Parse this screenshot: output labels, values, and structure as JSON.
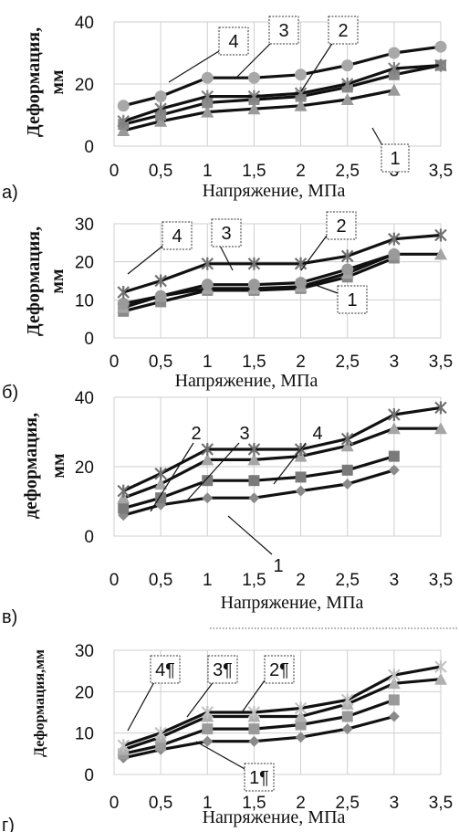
{
  "chart_data": [
    {
      "type": "line",
      "panel_label": "а)",
      "xlabel": "Напряжение, МПа",
      "ylabel": "Деформация, мм",
      "ylabel_lines": [
        "Деформация,",
        "мм"
      ],
      "x": [
        0.1,
        0.5,
        1,
        1.5,
        2,
        2.5,
        3,
        3.5
      ],
      "x_ticks": [
        "0",
        "0,5",
        "1",
        "1,5",
        "2",
        "2,5",
        "3",
        "3,5"
      ],
      "y_ticks": [
        "0",
        "20",
        "40"
      ],
      "xlim": [
        0,
        3.5
      ],
      "ylim": [
        0,
        40
      ],
      "grid": true,
      "series": [
        {
          "name": "1",
          "marker": "triangle",
          "values": [
            5,
            8,
            11,
            12,
            13,
            15,
            18,
            null
          ]
        },
        {
          "name": "2",
          "marker": "square",
          "values": [
            7,
            10,
            14,
            15,
            16,
            19,
            23,
            26
          ]
        },
        {
          "name": "3",
          "marker": "star",
          "values": [
            8,
            12,
            16,
            16,
            17,
            20,
            25,
            26
          ]
        },
        {
          "name": "4",
          "marker": "circle",
          "values": [
            13,
            16,
            22,
            22,
            23,
            26,
            30,
            32
          ]
        }
      ]
    },
    {
      "type": "line",
      "panel_label": "б)",
      "xlabel": "Напряжение, МПа",
      "ylabel": "Деформация, мм",
      "ylabel_lines": [
        "Деформация,",
        "мм"
      ],
      "x": [
        0.1,
        0.5,
        1,
        1.5,
        2,
        2.5,
        3,
        3.5
      ],
      "x_ticks": [
        "0",
        "0,5",
        "1",
        "1,5",
        "2",
        "2,5",
        "3",
        "3,5"
      ],
      "y_ticks": [
        "0",
        "10",
        "20",
        "30"
      ],
      "xlim": [
        0,
        3.5
      ],
      "ylim": [
        0,
        30
      ],
      "grid": true,
      "series": [
        {
          "name": "1",
          "marker": "square",
          "values": [
            7,
            9.5,
            12.5,
            12.5,
            13,
            16,
            21,
            null
          ]
        },
        {
          "name": "2",
          "marker": "triangle",
          "values": [
            8,
            11,
            13,
            13,
            13.5,
            17,
            22,
            22
          ]
        },
        {
          "name": "3",
          "marker": "circle",
          "values": [
            9,
            11,
            14,
            14,
            14.5,
            18,
            22,
            null
          ]
        },
        {
          "name": "4",
          "marker": "star",
          "values": [
            12,
            15,
            19.5,
            19.5,
            19.5,
            21.5,
            26,
            27
          ]
        }
      ]
    },
    {
      "type": "line",
      "panel_label": "в)",
      "xlabel": "Напряжение, МПа",
      "ylabel": "деформация, мм",
      "ylabel_lines": [
        "деформация,",
        "мм"
      ],
      "x": [
        0.1,
        0.5,
        1,
        1.5,
        2,
        2.5,
        3,
        3.5
      ],
      "x_ticks": [
        "0",
        "0,5",
        "1",
        "1,5",
        "2",
        "2,5",
        "3",
        "3,5"
      ],
      "y_ticks": [
        "0",
        "20",
        "40"
      ],
      "xlim": [
        0,
        3.5
      ],
      "ylim": [
        0,
        40
      ],
      "grid": true,
      "series": [
        {
          "name": "1",
          "marker": "diamond",
          "values": [
            6,
            9,
            11,
            11,
            13,
            15,
            19,
            null
          ]
        },
        {
          "name": "2",
          "marker": "square",
          "values": [
            8,
            11,
            16,
            16,
            17,
            19,
            23,
            null
          ]
        },
        {
          "name": "3",
          "marker": "triangle",
          "values": [
            11,
            15,
            22,
            22,
            23,
            26,
            31,
            31
          ]
        },
        {
          "name": "4",
          "marker": "star",
          "values": [
            13,
            18,
            25,
            25,
            25,
            28,
            35,
            37
          ]
        }
      ]
    },
    {
      "type": "line",
      "panel_label": "г)",
      "xlabel": "Напряжение, МПа",
      "ylabel": "Деформация,мм",
      "ylabel_lines": [
        "Деформация,мм"
      ],
      "x": [
        0.1,
        0.5,
        1,
        1.5,
        2,
        2.5,
        3,
        3.5
      ],
      "x_ticks": [
        "0",
        "0,5",
        "1",
        "1,5",
        "2",
        "2,5",
        "3",
        "3,5"
      ],
      "y_ticks": [
        "0",
        "10",
        "20",
        "30"
      ],
      "xlim": [
        0,
        3.5
      ],
      "ylim": [
        0,
        30
      ],
      "grid": true,
      "series": [
        {
          "name": "1¶",
          "marker": "diamond",
          "values": [
            4,
            6,
            8,
            8,
            9,
            11,
            14,
            null
          ]
        },
        {
          "name": "2¶",
          "marker": "square",
          "values": [
            5,
            7,
            11,
            11,
            12,
            14,
            18,
            null
          ]
        },
        {
          "name": "3¶",
          "marker": "triangle",
          "values": [
            6,
            9,
            14,
            14,
            14,
            17,
            22,
            23
          ]
        },
        {
          "name": "4¶",
          "marker": "star",
          "values": [
            7,
            10,
            15,
            15,
            16,
            18,
            24,
            26
          ]
        }
      ]
    }
  ]
}
